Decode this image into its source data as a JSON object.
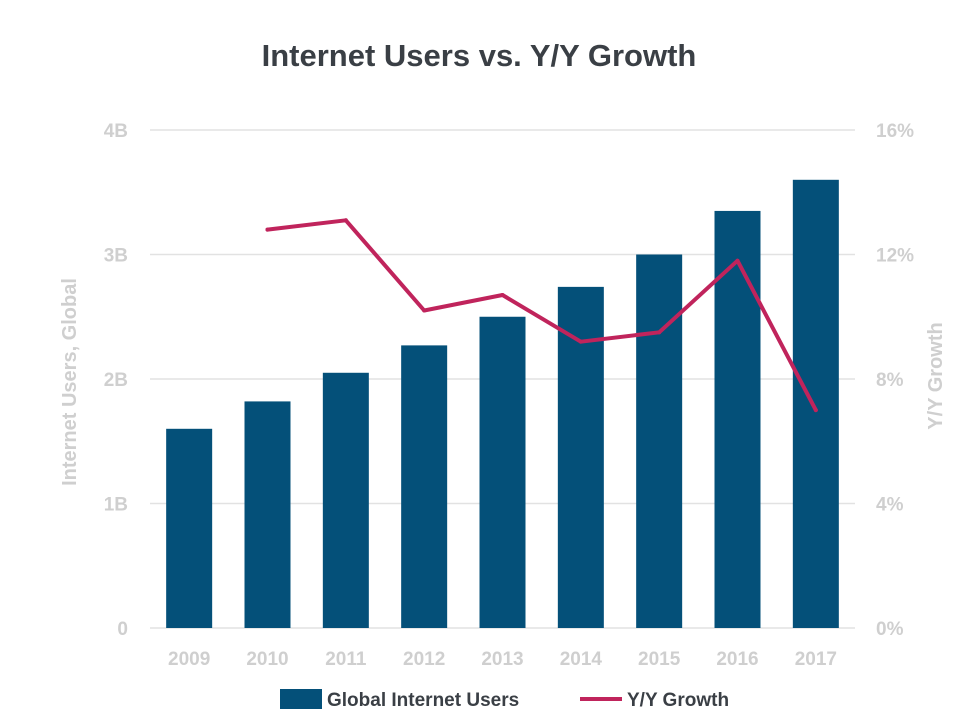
{
  "chart_data": {
    "type": "bar",
    "title": "Internet Users vs. Y/Y Growth",
    "categories": [
      "2009",
      "2010",
      "2011",
      "2012",
      "2013",
      "2014",
      "2015",
      "2016",
      "2017"
    ],
    "series": [
      {
        "name": "Global Internet Users",
        "type": "bar",
        "axis": "left",
        "color": "#045079",
        "values": [
          1.6,
          1.82,
          2.05,
          2.27,
          2.5,
          2.74,
          3.0,
          3.35,
          3.6
        ]
      },
      {
        "name": "Y/Y Growth",
        "type": "line",
        "axis": "right",
        "color": "#c0245c",
        "values": [
          null,
          12.8,
          13.1,
          10.2,
          10.7,
          9.2,
          9.5,
          11.8,
          7.0
        ]
      }
    ],
    "y_left": {
      "label": "Internet Users, Global",
      "ylim": [
        0,
        4
      ],
      "ticks": [
        0,
        1,
        2,
        3,
        4
      ],
      "tick_labels": [
        "0",
        "1B",
        "2B",
        "3B",
        "4B"
      ]
    },
    "y_right": {
      "label": "Y/Y Growth",
      "ylim": [
        0,
        16
      ],
      "ticks": [
        0,
        4,
        8,
        12,
        16
      ],
      "tick_labels": [
        "0%",
        "4%",
        "8%",
        "12%",
        "16%"
      ]
    },
    "grid": true,
    "legend_position": "bottom-center",
    "colors": {
      "gridline": "#e2e2e2",
      "axis_text": "#cfcfcf",
      "title_text": "#3a3f45"
    }
  }
}
